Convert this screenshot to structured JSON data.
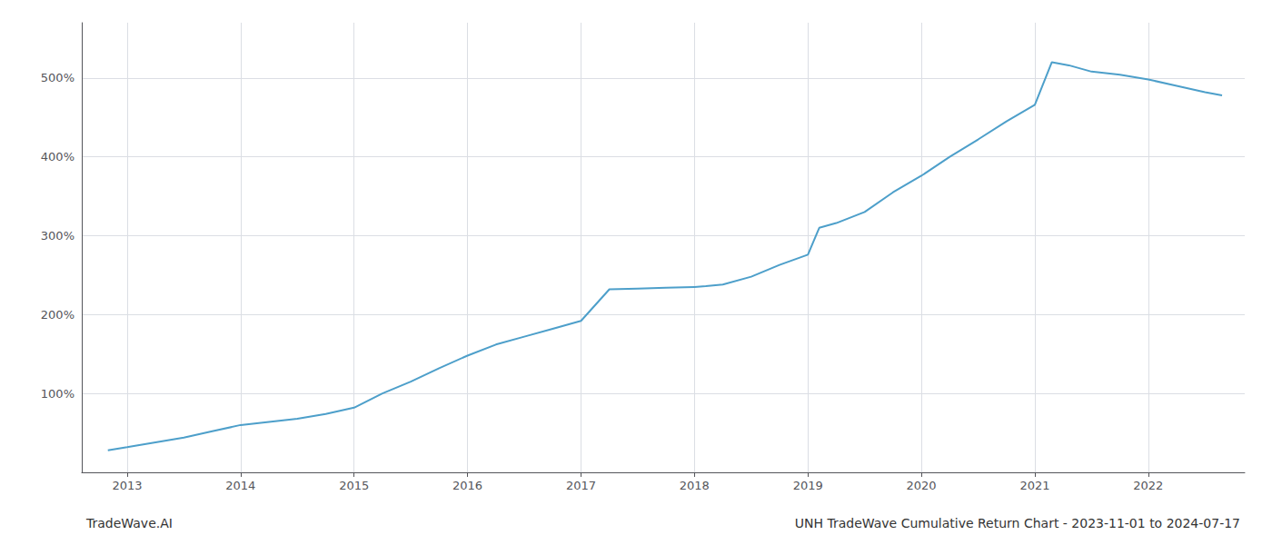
{
  "chart_data": {
    "type": "line",
    "title": "UNH TradeWave Cumulative Return Chart - 2023-11-01 to 2024-07-17",
    "annotations": [
      "TradeWave.AI"
    ],
    "x": [
      2012.83,
      2013.0,
      2013.25,
      2013.5,
      2013.75,
      2014.0,
      2014.25,
      2014.5,
      2014.75,
      2015.0,
      2015.25,
      2015.5,
      2015.75,
      2016.0,
      2016.25,
      2016.5,
      2016.75,
      2017.0,
      2017.25,
      2017.5,
      2017.75,
      2018.0,
      2018.1,
      2018.25,
      2018.5,
      2018.75,
      2019.0,
      2019.1,
      2019.25,
      2019.5,
      2019.75,
      2020.0,
      2020.25,
      2020.5,
      2020.75,
      2021.0,
      2021.15,
      2021.3,
      2021.5,
      2021.75,
      2022.0,
      2022.25,
      2022.5,
      2022.65
    ],
    "values": [
      28,
      32,
      38,
      44,
      52,
      60,
      64,
      68,
      74,
      82,
      100,
      115,
      132,
      148,
      162,
      172,
      182,
      192,
      232,
      233,
      234,
      235,
      236,
      238,
      248,
      263,
      276,
      310,
      316,
      330,
      355,
      376,
      400,
      422,
      445,
      466,
      520,
      516,
      508,
      504,
      498,
      490,
      482,
      478
    ],
    "color": "#4d9fca",
    "xlim": [
      2012.6,
      2022.85
    ],
    "xticks": [
      2013,
      2014,
      2015,
      2016,
      2017,
      2018,
      2019,
      2020,
      2021,
      2022
    ],
    "ylim": [
      0,
      570
    ],
    "yticks": [
      {
        "value": 100,
        "label": "100%"
      },
      {
        "value": 200,
        "label": "200%"
      },
      {
        "value": 300,
        "label": "300%"
      },
      {
        "value": 400,
        "label": "400%"
      },
      {
        "value": 500,
        "label": "500%"
      }
    ],
    "grid": true
  }
}
